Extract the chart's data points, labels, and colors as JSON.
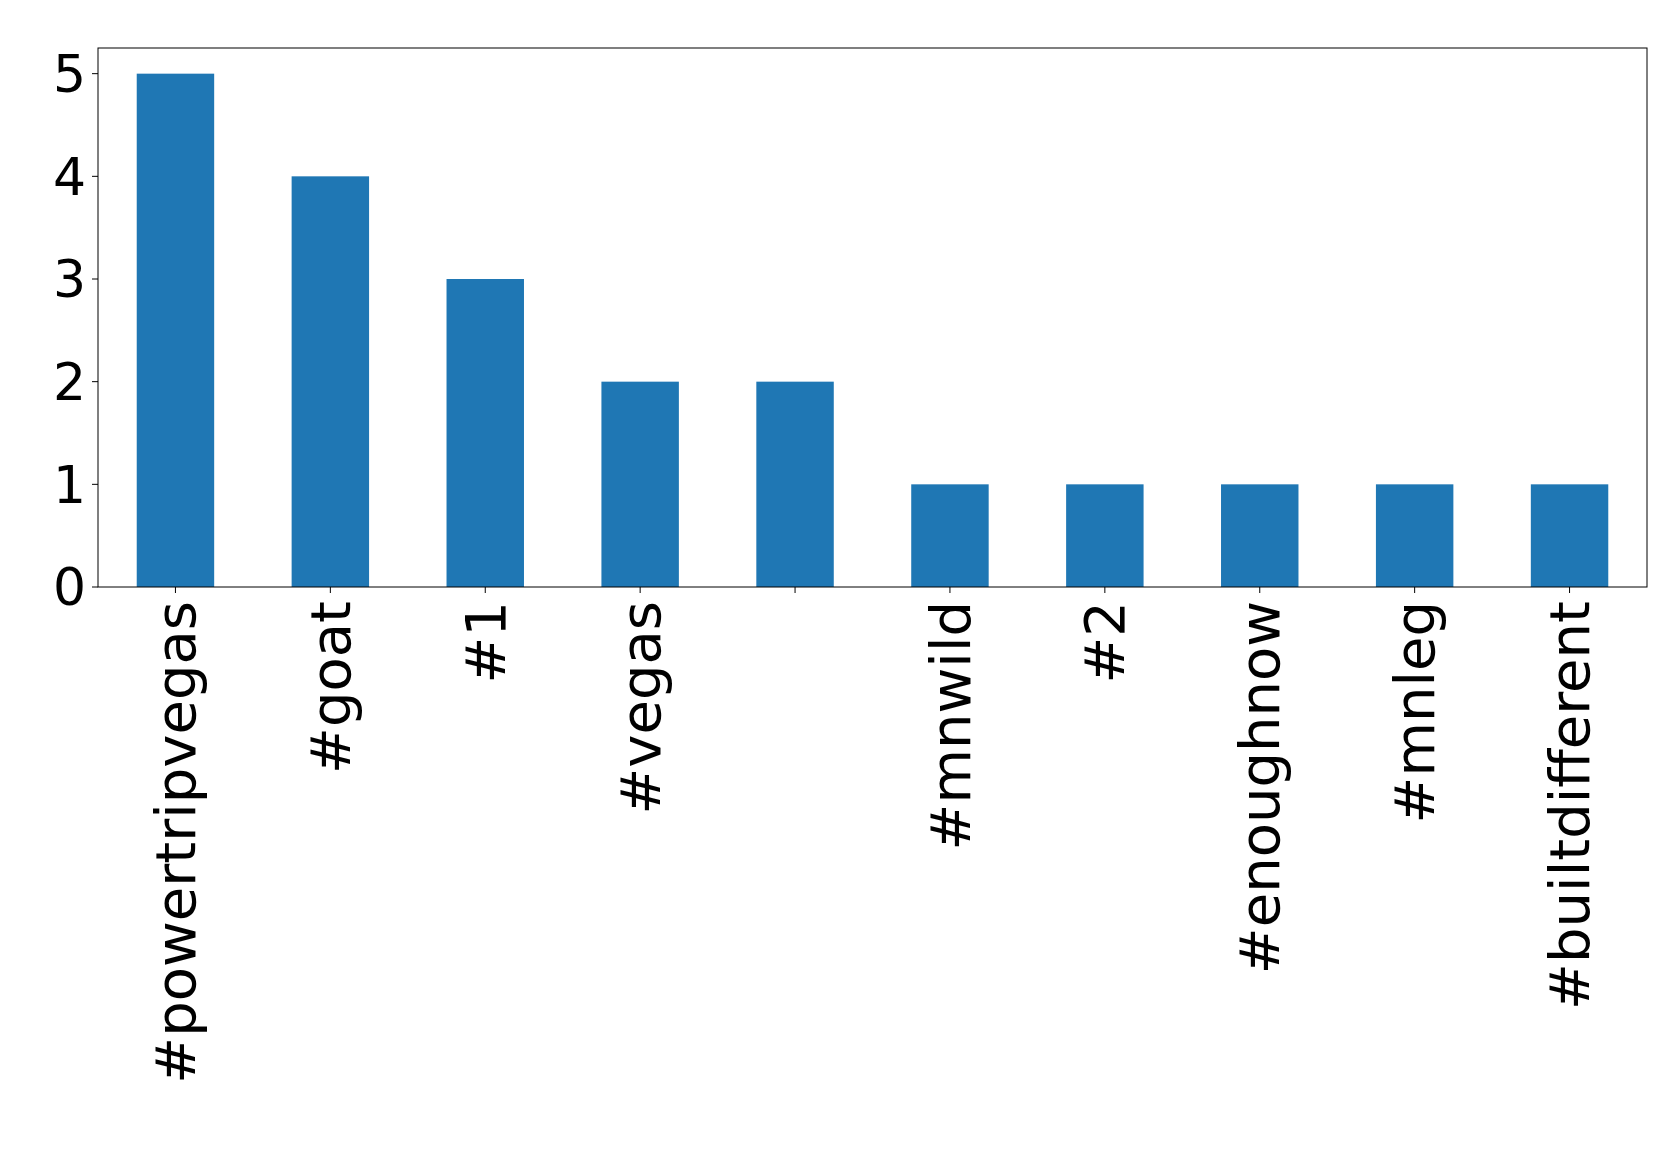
{
  "chart_data": {
    "type": "bar",
    "categories": [
      "#powertripvegas",
      "#goat",
      "#1",
      "#vegas",
      null,
      "#mnwild",
      "#2",
      "#enoughnow",
      "#mnleg",
      "#builtdifferent"
    ],
    "values": [
      5,
      4,
      3,
      2,
      2,
      1,
      1,
      1,
      1,
      1
    ],
    "color": "#1f77b4",
    "ylim": [
      0,
      5.25
    ],
    "yticks": [
      0,
      1,
      2,
      3,
      4,
      5
    ],
    "grid": false
  }
}
